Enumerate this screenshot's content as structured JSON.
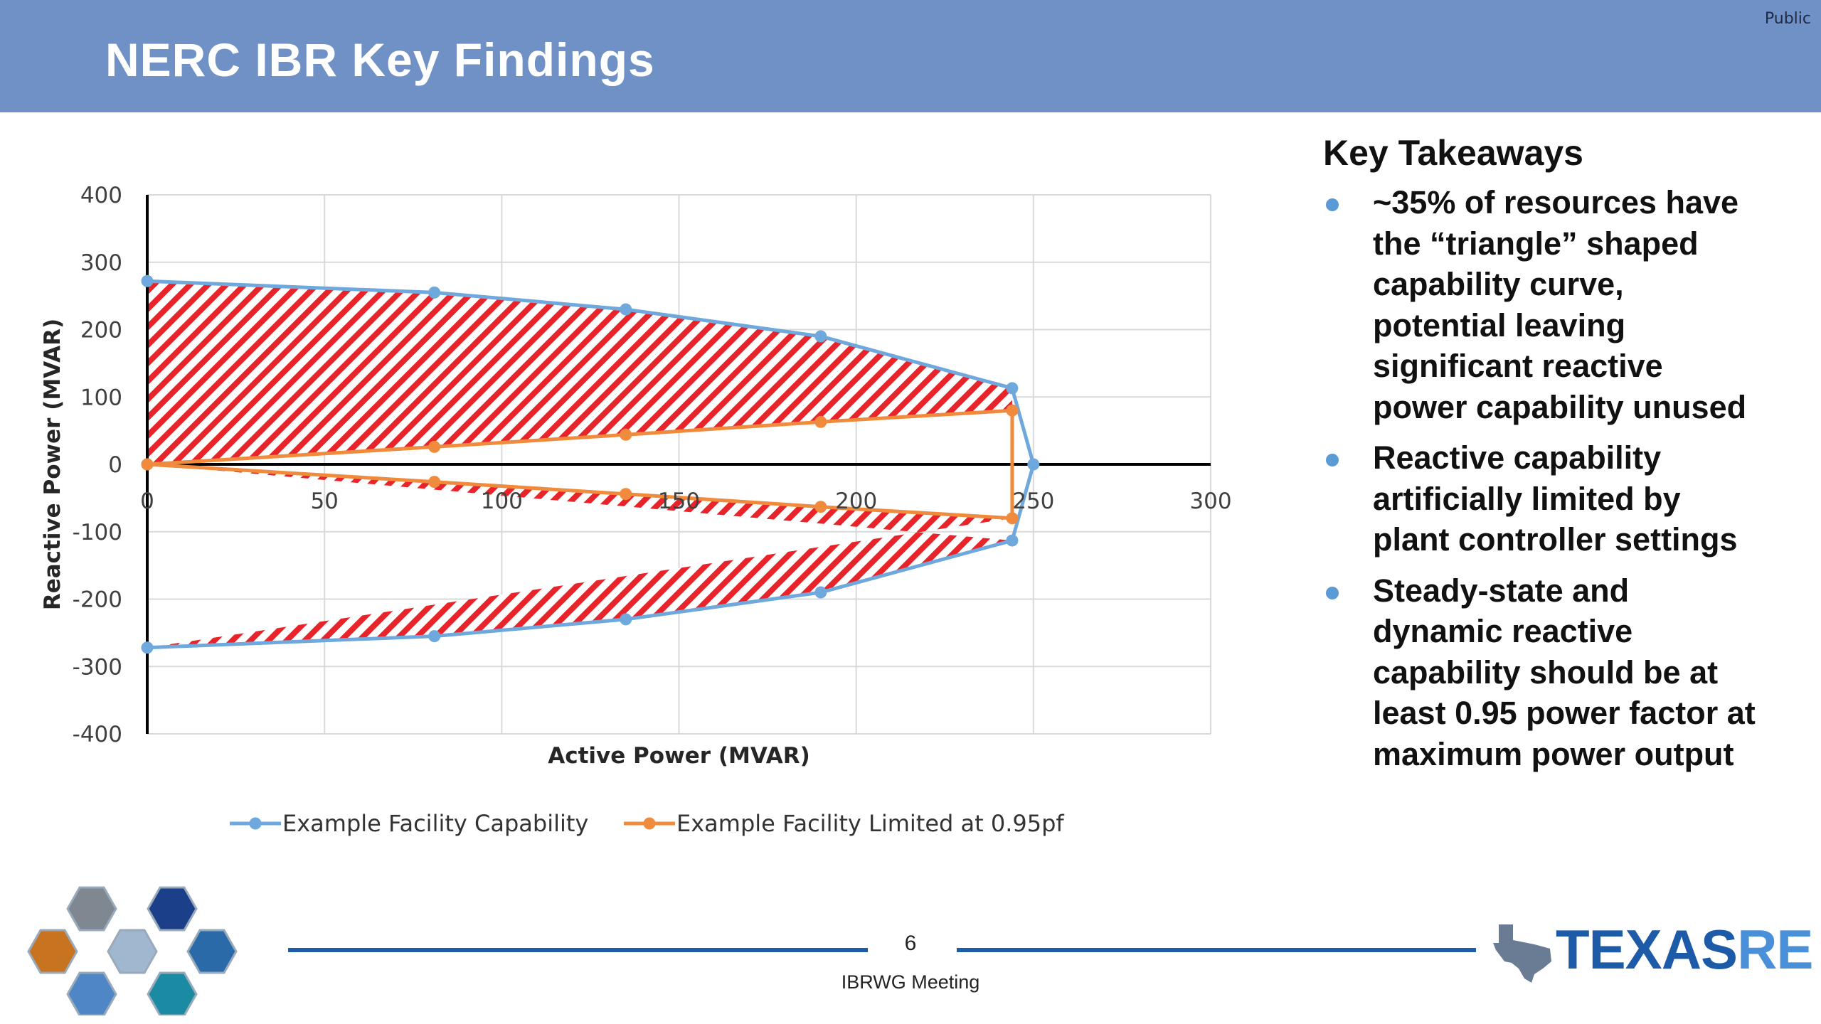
{
  "header": {
    "title": "NERC IBR Key Findings",
    "classification": "Public",
    "banner_color": "#7091c6"
  },
  "takeaways": {
    "heading": "Key Takeaways",
    "bullets": [
      {
        "lines": [
          "~35% of resources have",
          "the “triangle” shaped",
          "capability curve,",
          "potential leaving",
          "significant reactive",
          "power capability unused"
        ]
      },
      {
        "lines": [
          "Reactive capability",
          "artificially limited by",
          "plant controller settings"
        ]
      },
      {
        "lines": [
          "Steady-state and",
          "dynamic reactive",
          "capability should be at",
          "least 0.95 power factor at",
          "maximum power output"
        ]
      }
    ],
    "bullet_color": "#5b9bd5"
  },
  "footer": {
    "page_number": "6",
    "meeting": "IBRWG Meeting",
    "line_color": "#1d5ba8",
    "logo_part1": "TEXAS",
    "logo_part2": "RE",
    "logo_color1": "#1d5ba8",
    "logo_color2": "#4a90d9"
  },
  "chart_data": {
    "type": "line",
    "xlabel": "Active Power (MVAR)",
    "ylabel": "Reactive Power (MVAR)",
    "xlim": [
      0,
      300
    ],
    "ylim": [
      -400,
      400
    ],
    "x_ticks": [
      "0",
      "50",
      "100",
      "150",
      "200",
      "250",
      "300"
    ],
    "y_ticks": [
      "400",
      "300",
      "200",
      "100",
      "0",
      "-100",
      "-200",
      "-300",
      "-400"
    ],
    "grid": true,
    "legend_position": "bottom",
    "shaded_region_color": "#e8242a",
    "series": [
      {
        "name": "Example Facility Capability",
        "color": "#6fa8dc",
        "x": [
          0,
          81,
          135,
          190,
          244,
          250,
          244,
          190,
          135,
          81,
          0
        ],
        "y": [
          272,
          255,
          230,
          190,
          113,
          0,
          -113,
          -190,
          -230,
          -255,
          -272
        ]
      },
      {
        "name": "Example Facility Limited at 0.95pf",
        "color": "#f08a3c",
        "x": [
          0,
          81,
          135,
          190,
          244,
          244,
          190,
          135,
          81,
          0
        ],
        "y": [
          0,
          26,
          44,
          63,
          80,
          -80,
          -63,
          -44,
          -26,
          0
        ]
      }
    ]
  }
}
